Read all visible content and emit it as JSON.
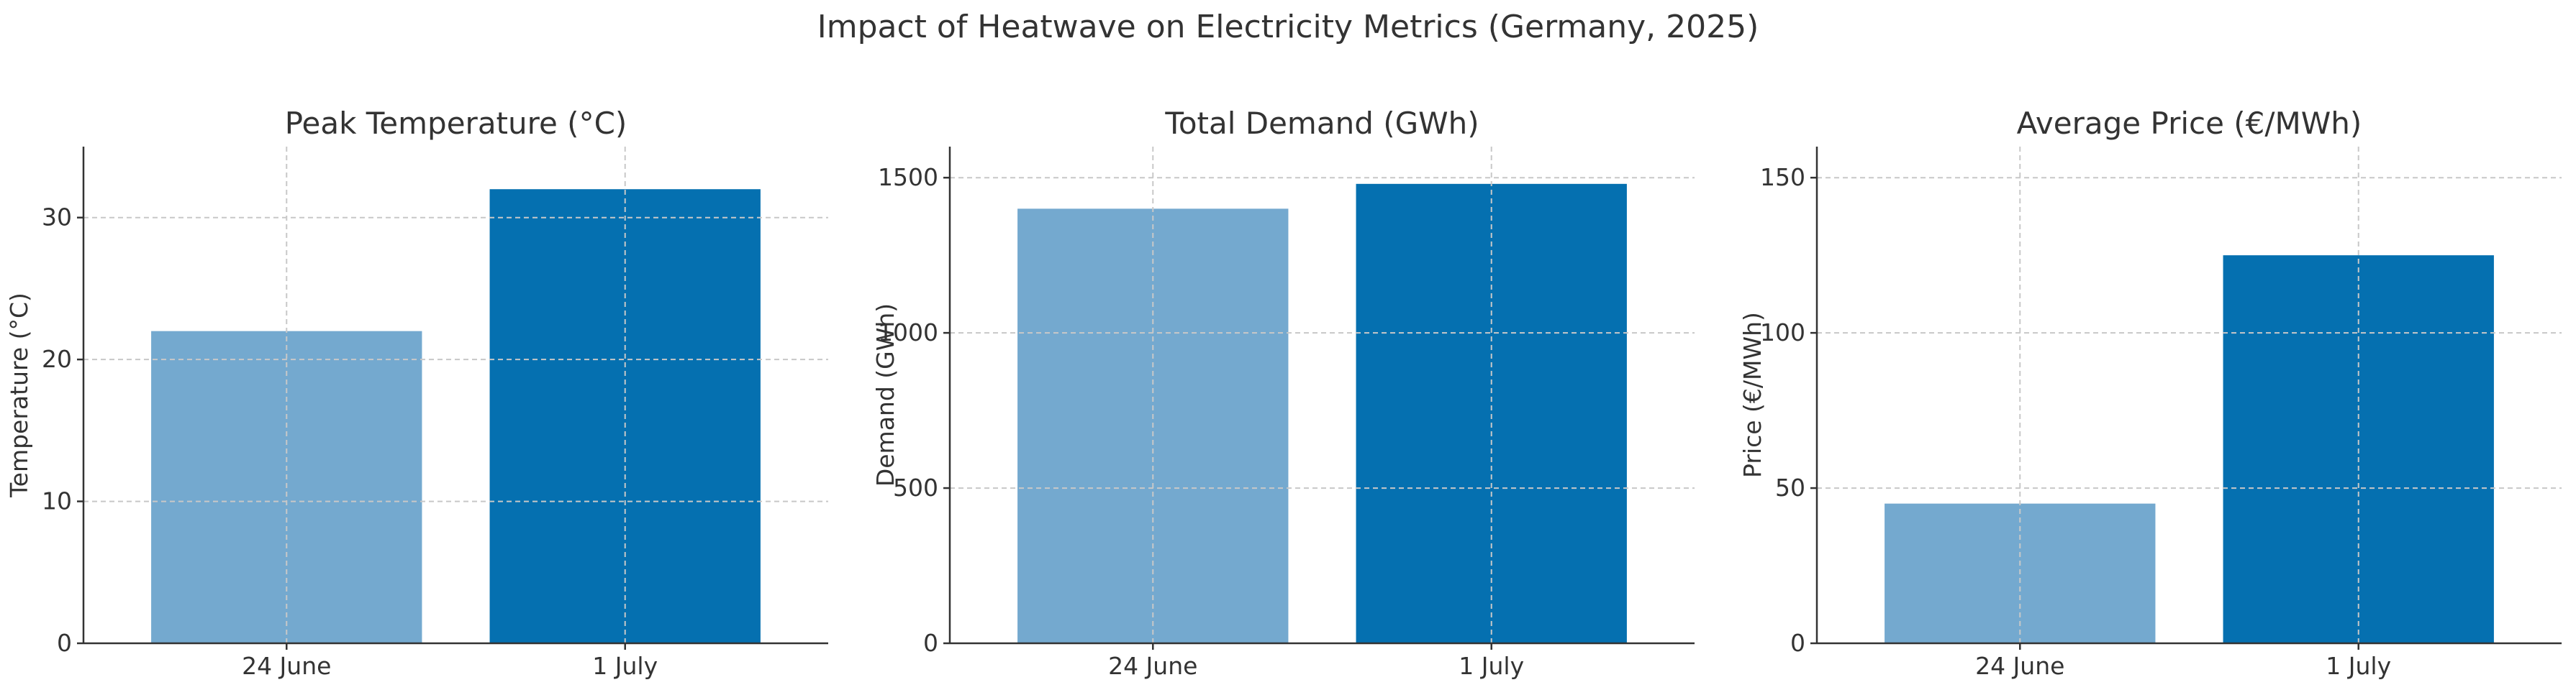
{
  "figure": {
    "suptitle": "Impact of Heatwave on Electricity Metrics (Germany, 2025)"
  },
  "chart_data": [
    {
      "type": "bar",
      "title": "Peak Temperature (°C)",
      "ylabel": "Temperature (°C)",
      "xlabel": "",
      "categories": [
        "24 June",
        "1 July"
      ],
      "values": [
        22,
        32
      ],
      "colors": [
        "#74a9cf",
        "#0570b0"
      ],
      "ylim": [
        0,
        35
      ],
      "yticks": [
        0,
        10,
        20,
        30
      ],
      "grid": true
    },
    {
      "type": "bar",
      "title": "Total Demand (GWh)",
      "ylabel": "Demand (GWh)",
      "xlabel": "",
      "categories": [
        "24 June",
        "1 July"
      ],
      "values": [
        1400,
        1480
      ],
      "colors": [
        "#74a9cf",
        "#0570b0"
      ],
      "ylim": [
        0,
        1600
      ],
      "yticks": [
        0,
        500,
        1000,
        1500
      ],
      "grid": true
    },
    {
      "type": "bar",
      "title": "Average Price (€/MWh)",
      "ylabel": "Price (€/MWh)",
      "xlabel": "",
      "categories": [
        "24 June",
        "1 July"
      ],
      "values": [
        45,
        125
      ],
      "colors": [
        "#74a9cf",
        "#0570b0"
      ],
      "ylim": [
        0,
        160
      ],
      "yticks": [
        0,
        50,
        100,
        150
      ],
      "grid": true
    }
  ]
}
